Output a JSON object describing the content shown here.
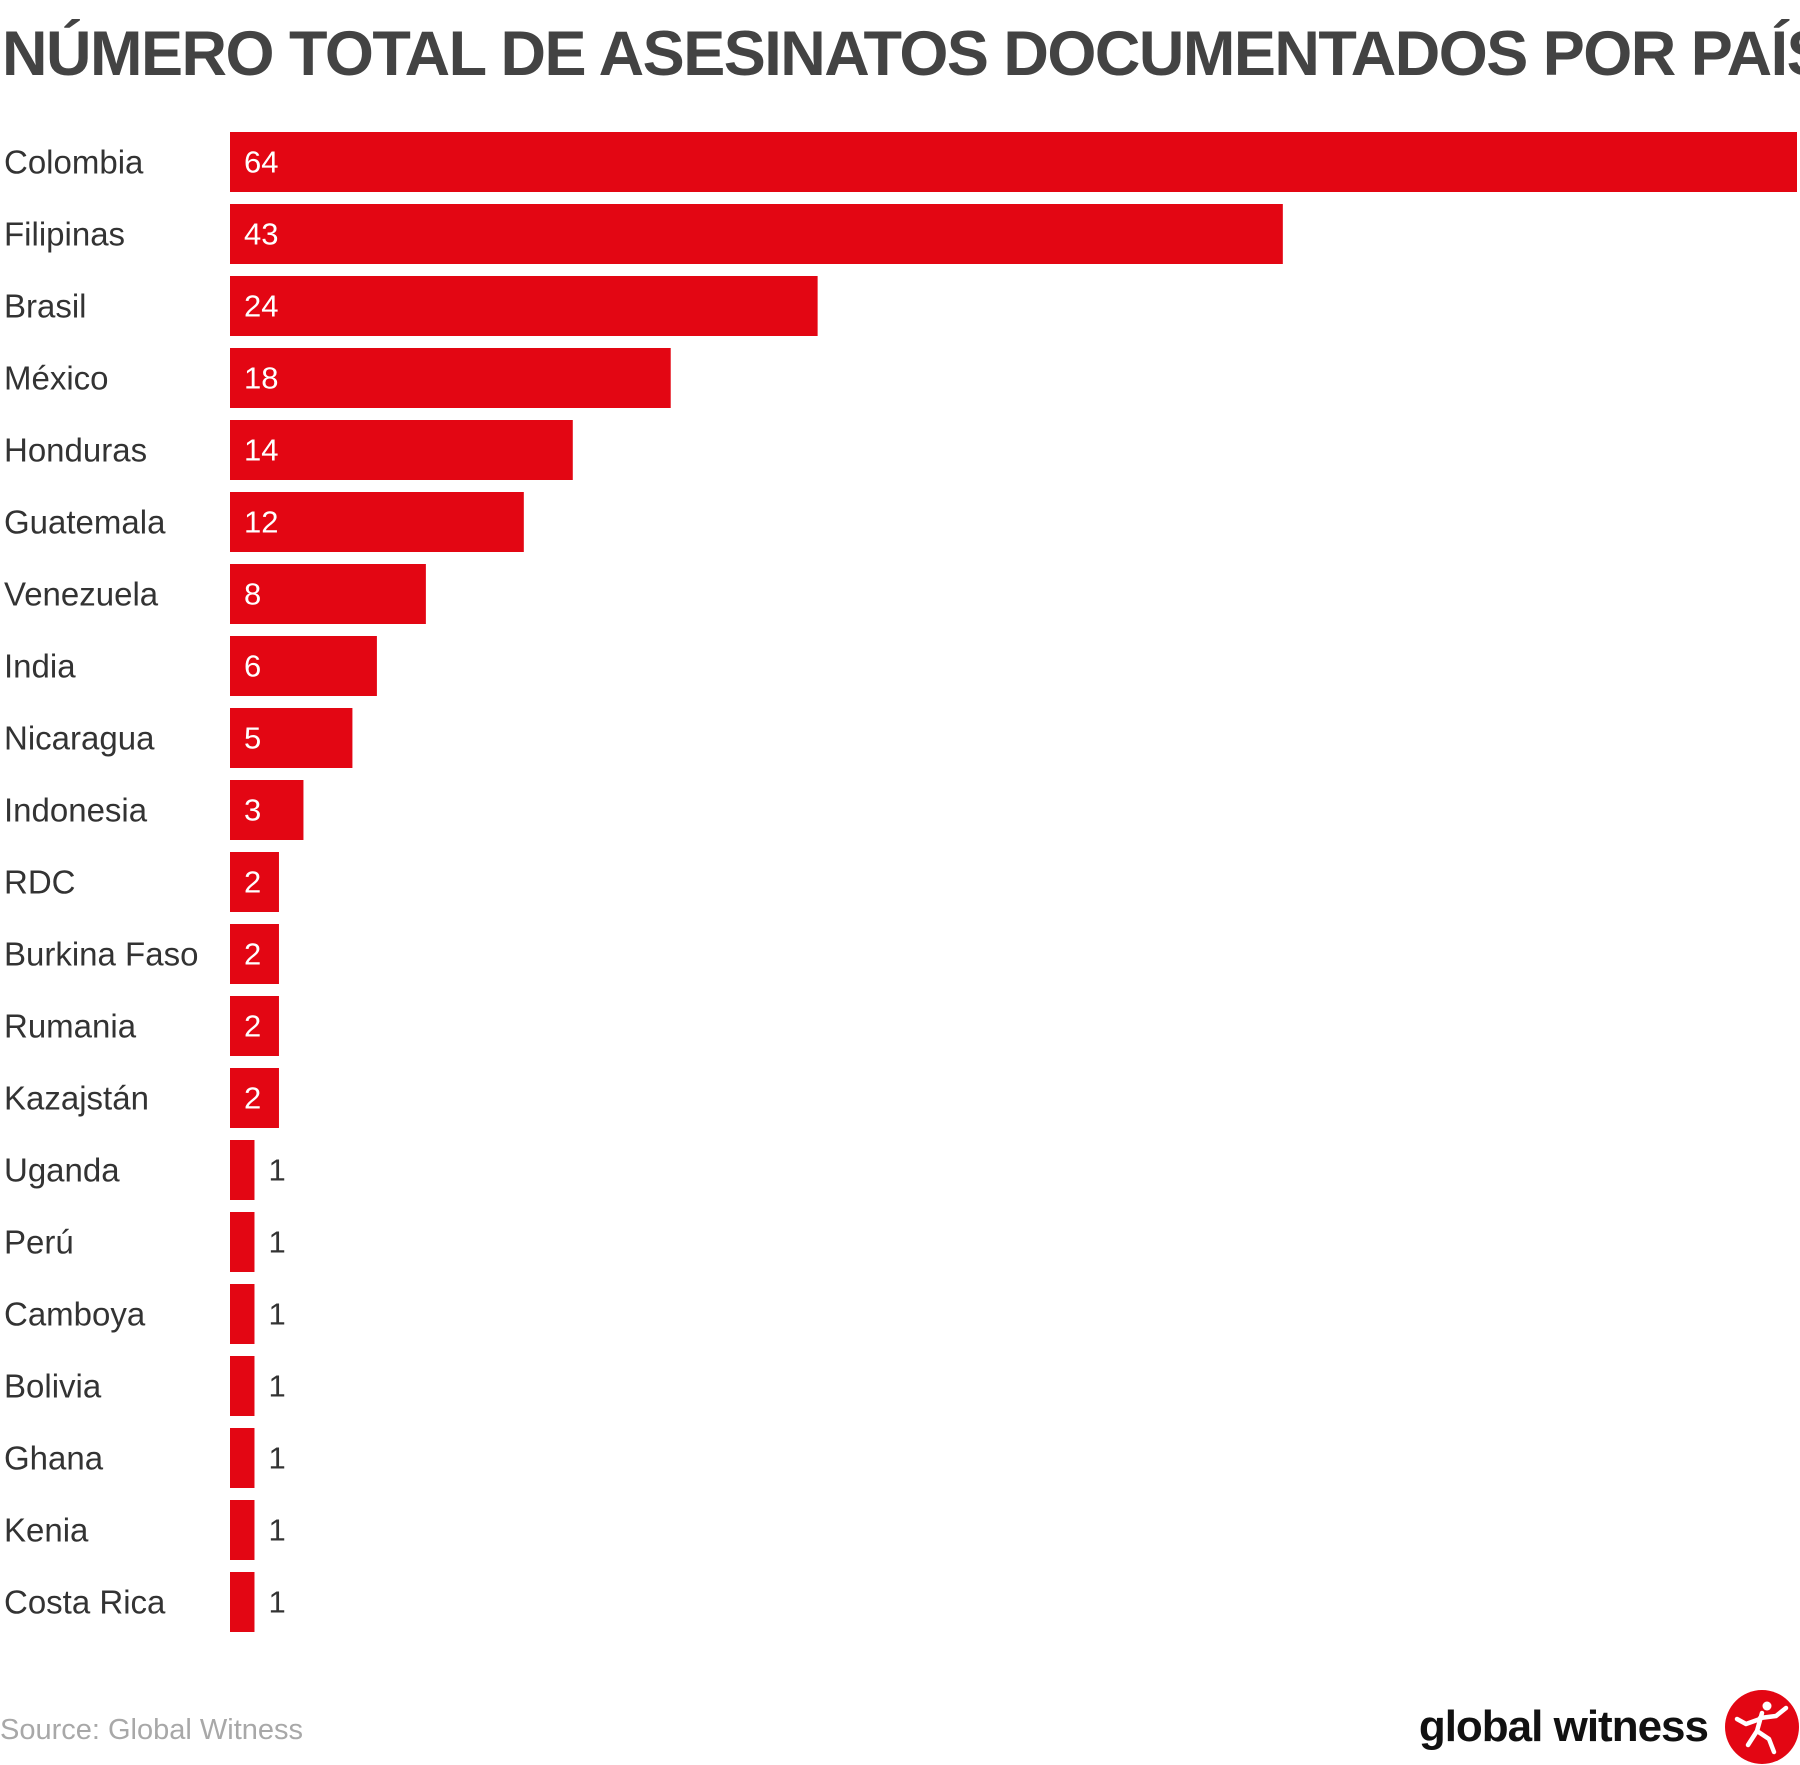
{
  "chart_data": {
    "type": "bar",
    "orientation": "horizontal",
    "title": "NÚMERO TOTAL DE ASESINATOS DOCUMENTADOS POR PAÍS",
    "categories": [
      "Colombia",
      "Filipinas",
      "Brasil",
      "México",
      "Honduras",
      "Guatemala",
      "Venezuela",
      "India",
      "Nicaragua",
      "Indonesia",
      "RDC",
      "Burkina Faso",
      "Rumania",
      "Kazajstán",
      "Uganda",
      "Perú",
      "Camboya",
      "Bolivia",
      "Ghana",
      "Kenia",
      "Costa Rica"
    ],
    "values": [
      64,
      43,
      24,
      18,
      14,
      12,
      8,
      6,
      5,
      3,
      2,
      2,
      2,
      2,
      1,
      1,
      1,
      1,
      1,
      1,
      1
    ],
    "xlim": [
      0,
      64
    ],
    "grid": false,
    "legend": "none",
    "bar_color": "#e30613",
    "source": "Source: Global Witness"
  },
  "brand": {
    "name": "global witness",
    "logo_icon": "global-witness-logo-icon",
    "logo_color": "#e30613"
  }
}
